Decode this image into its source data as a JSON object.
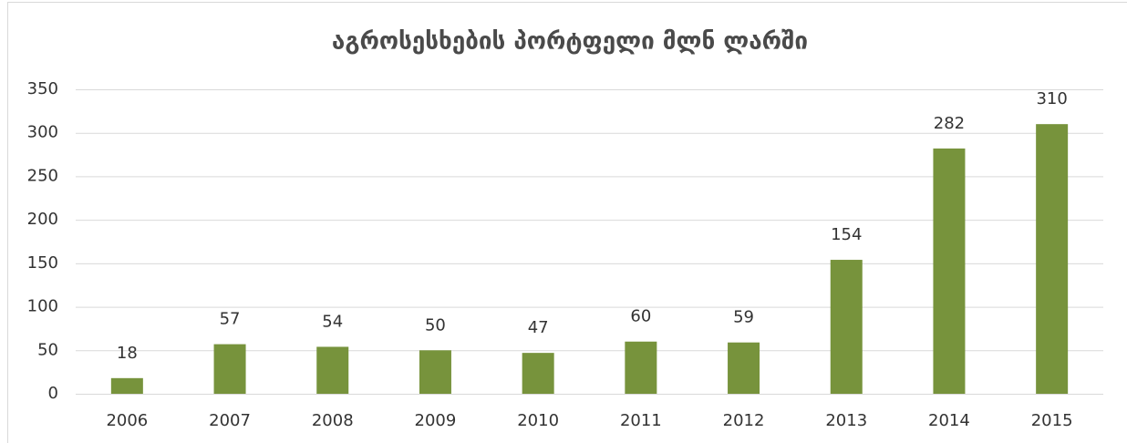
{
  "chart_data": {
    "type": "bar",
    "title": "აგროსესხების პორტფელი მლნ ლარში",
    "categories": [
      "2006",
      "2007",
      "2008",
      "2009",
      "2010",
      "2011",
      "2012",
      "2013",
      "2014",
      "2015"
    ],
    "values": [
      18,
      57,
      54,
      50,
      47,
      60,
      59,
      154,
      282,
      310
    ],
    "color": "#77933c",
    "ylim": [
      0,
      350
    ],
    "yticks": [
      0,
      50,
      100,
      150,
      200,
      250,
      300,
      350
    ],
    "grid": true
  }
}
